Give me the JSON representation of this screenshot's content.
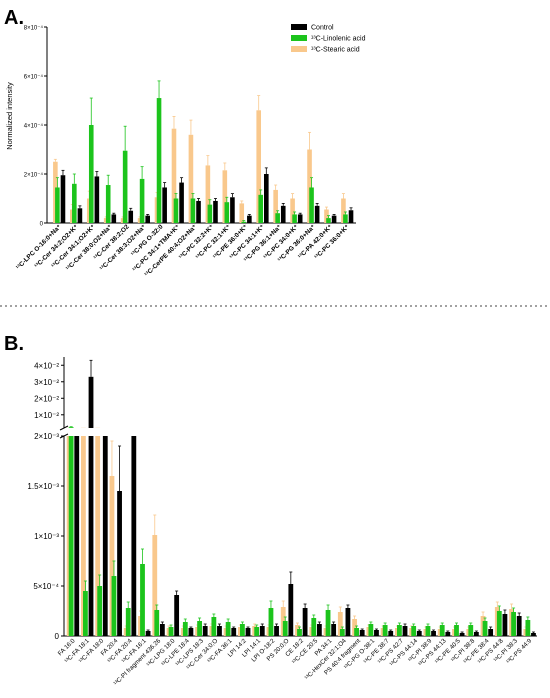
{
  "chart_data": [
    {
      "panel": "A.",
      "type": "bar",
      "ylabel": "Normalized intensity",
      "y_ticks": [
        0,
        0.0002,
        0.0004,
        0.0006,
        0.0008
      ],
      "y_tick_labels": [
        "0",
        "2×10⁻⁴",
        "4×10⁻⁴",
        "6×10⁻⁴",
        "8×10⁻⁴"
      ],
      "ylim": [
        0,
        0.0008
      ],
      "legend_position": "top-right",
      "categories": [
        "¹³C-LPC O-16:0+Na⁺",
        "¹³C-Cer 34:2;O2+K⁺",
        "¹³C-Cer 34:1;O2+K⁺",
        "¹³C-Cer 38:0;O2+Na⁺",
        "¹³C-Cer 38:2;O2",
        "¹³C-Cer 38:3;O2+Na⁺",
        "¹³C-PG O-32:0",
        "¹³C-PC 34:1+TMA+K⁺",
        "¹³C-CerPE 40:4;O2+Na⁺",
        "¹³C-PC 32:2+K⁺",
        "¹³C-PC 32:1+K⁺",
        "¹³C-PE 36:0+K⁺",
        "¹³C-PC 34:1+K⁺",
        "¹³C-PG 36:1+Na⁺",
        "¹³C-PC 34:0+K⁺",
        "¹³C-PG 36:0+Na⁺",
        "¹³C-PA 42:0+K⁺",
        "¹³C-PC 36:0+K⁺"
      ],
      "series": [
        {
          "name": "Control",
          "color": "#000000",
          "values": [
            0.000195,
            6e-05,
            0.00019,
            3.5e-05,
            5e-05,
            3e-05,
            0.000145,
            0.000165,
            9e-05,
            9e-05,
            0.000105,
            3e-05,
            0.0002,
            7e-05,
            3.5e-05,
            7e-05,
            3e-05,
            5.2e-05
          ],
          "errors": [
            2e-05,
            1e-05,
            2e-05,
            5e-06,
            1e-05,
            5e-06,
            2e-05,
            2e-05,
            1e-05,
            1e-05,
            1.5e-05,
            5e-06,
            2.5e-05,
            1e-05,
            5e-06,
            1e-05,
            5e-06,
            1e-05
          ]
        },
        {
          "name": "¹³C-Linolenic acid",
          "color": "#1cc41c",
          "values": [
            0.000145,
            0.00016,
            0.0004,
            0.000155,
            0.000295,
            0.00018,
            0.00051,
            0.0001,
            0.0001,
            7.5e-05,
            8.5e-05,
            5e-06,
            0.000115,
            4e-05,
            3.5e-05,
            0.000145,
            2e-05,
            3.5e-05
          ],
          "errors": [
            4e-05,
            4e-05,
            0.00011,
            4e-05,
            0.0001,
            5e-05,
            7e-05,
            2e-05,
            2e-05,
            2e-05,
            2e-05,
            5e-06,
            2e-05,
            1e-05,
            1e-05,
            4e-05,
            1e-05,
            1e-05
          ]
        },
        {
          "name": "¹³C-Stearic acid",
          "color": "#f9c88c",
          "values": [
            0.00025,
            5.5e-05,
            0.0001,
            2e-05,
            2e-05,
            2e-05,
            0.000105,
            0.000385,
            0.00036,
            0.000235,
            0.000215,
            8e-05,
            0.00046,
            0.000135,
            0.0001,
            0.0003,
            5.5e-05,
            0.0001
          ],
          "errors": [
            1e-05,
            2e-05,
            3e-05,
            5e-06,
            5e-06,
            5e-06,
            2e-05,
            5e-05,
            6e-05,
            4e-05,
            3e-05,
            1e-05,
            6e-05,
            2e-05,
            2e-05,
            7e-05,
            1e-05,
            2e-05
          ]
        }
      ]
    },
    {
      "panel": "B.",
      "type": "bar",
      "ylabel": "",
      "axis_break": true,
      "lower_ylim": [
        0,
        0.002
      ],
      "lower_ticks": [
        0,
        0.0005,
        0.001,
        0.0015,
        0.002
      ],
      "lower_tick_labels": [
        "0",
        "5×10⁻⁴",
        "1×10⁻³",
        "1.5×10⁻³",
        "2×10⁻³"
      ],
      "upper_ylim": [
        0.002,
        0.045
      ],
      "upper_ticks": [
        0.01,
        0.02,
        0.03,
        0.04
      ],
      "upper_tick_labels": [
        "1×10⁻²",
        "2×10⁻²",
        "3×10⁻²",
        "4×10⁻²"
      ],
      "categories": [
        "FA 16:0",
        "¹³C-FA 18:1",
        "¹³C-FA 18:0",
        "FA 20:4",
        "¹³C-FA 20:4",
        "¹³C-FA 16:1",
        "¹³C-PI fragment 436.26",
        "¹³C-LPG 18:0",
        "¹³C-LPE 18:4",
        "¹³C-LPS 18:3",
        "¹³C-Cer 34:0;O",
        "¹³C-FA 36:1",
        "LPI 14:2",
        "LPI 14:1",
        "LPI O-18:2",
        "PS 20:0;O",
        "CE 18:2",
        "¹³C-CE 20:5",
        "PA 34:1",
        "¹³C-HexCer 32:1;O4",
        "PS 40:4 fragment",
        "¹³C-PG O-38:1",
        "¹³C-PE 38:7",
        "¹³C-PS 42:7",
        "¹³C-PS 44:14",
        "¹³C-PI 38:9",
        "¹³C-PS 44:13",
        "¹³C-PE 40:5",
        "¹³C-PI 38:8",
        "¹³C-PE 38:4",
        "¹³C-PS 44:8",
        "¹³C-PI 38:3",
        "¹³C-PS 44:9"
      ],
      "series": [
        {
          "name": "Control",
          "color": "#000000",
          "values": [
            0.002,
            0.033,
            0.002,
            0.00145,
            0.002,
            5e-05,
            0.00012,
            0.00041,
            8e-05,
            0.0001,
            0.0001,
            8e-05,
            8e-05,
            0.0001,
            0.0001,
            0.00052,
            0.00028,
            0.00012,
            0.00012,
            0.00028,
            6e-05,
            6e-05,
            5e-05,
            0.0001,
            5e-05,
            5e-05,
            4e-05,
            3e-05,
            4e-05,
            7e-05,
            0.00022,
            0.0002,
            3e-05
          ],
          "errors": [
            0,
            0.01,
            0,
            0.00045,
            0,
            1e-05,
            2e-05,
            4e-05,
            1e-05,
            2e-05,
            2e-05,
            1e-05,
            1e-05,
            2e-05,
            2e-05,
            0.00012,
            4e-05,
            2e-05,
            2e-05,
            3e-05,
            1e-05,
            1e-05,
            1e-05,
            2e-05,
            1e-05,
            1e-05,
            1e-05,
            1e-05,
            1e-05,
            2e-05,
            4e-05,
            3e-05,
            1e-05
          ]
        },
        {
          "name": "¹³C-Linolenic acid",
          "color": "#1cc41c",
          "values": [
            0.0025,
            0.00045,
            0.0005,
            0.0006,
            0.00028,
            0.00072,
            0.00026,
            9e-05,
            0.00014,
            0.00015,
            0.00019,
            0.00014,
            0.00012,
            9e-05,
            0.00028,
            0.00015,
            7e-05,
            0.00018,
            0.00026,
            7e-05,
            8e-05,
            0.00012,
            0.00011,
            0.00011,
            0.0001,
            0.0001,
            0.00011,
            0.00011,
            0.00011,
            0.00015,
            0.00025,
            0.00024,
            0.00016
          ],
          "errors": [
            0.0003,
            0.0001,
            0.00011,
            0.00015,
            6e-05,
            0.00015,
            5e-05,
            2e-05,
            3e-05,
            3e-05,
            3e-05,
            3e-05,
            2e-05,
            2e-05,
            7e-05,
            4e-05,
            2e-05,
            3e-05,
            5e-05,
            2e-05,
            2e-05,
            2e-05,
            2e-05,
            2e-05,
            2e-05,
            2e-05,
            2e-05,
            2e-05,
            2e-05,
            3e-05,
            5e-05,
            4e-05,
            3e-05
          ]
        },
        {
          "name": "¹³C-Stearic acid",
          "color": "#f9c88c",
          "values": [
            0.0021,
            0.0021,
            0.0021,
            0.0016,
            8e-05,
            0.0002,
            0.00101,
            8e-05,
            8e-05,
            9e-05,
            0.0001,
            8e-05,
            9e-05,
            0.0001,
            9e-05,
            0.00029,
            0.00011,
            9e-05,
            8e-05,
            0.00024,
            0.00017,
            9e-05,
            8e-05,
            8e-05,
            8e-05,
            7e-05,
            7e-05,
            7e-05,
            7e-05,
            0.0002,
            0.00029,
            0.00027,
            7e-05
          ],
          "errors": [
            0,
            0,
            0,
            0.00035,
            2e-05,
            5e-05,
            0.0002,
            2e-05,
            2e-05,
            2e-05,
            2e-05,
            2e-05,
            2e-05,
            2e-05,
            2e-05,
            6e-05,
            2e-05,
            2e-05,
            2e-05,
            5e-05,
            3e-05,
            2e-05,
            2e-05,
            2e-05,
            2e-05,
            2e-05,
            2e-05,
            2e-05,
            2e-05,
            4e-05,
            5e-05,
            5e-05,
            2e-05
          ]
        }
      ]
    }
  ]
}
